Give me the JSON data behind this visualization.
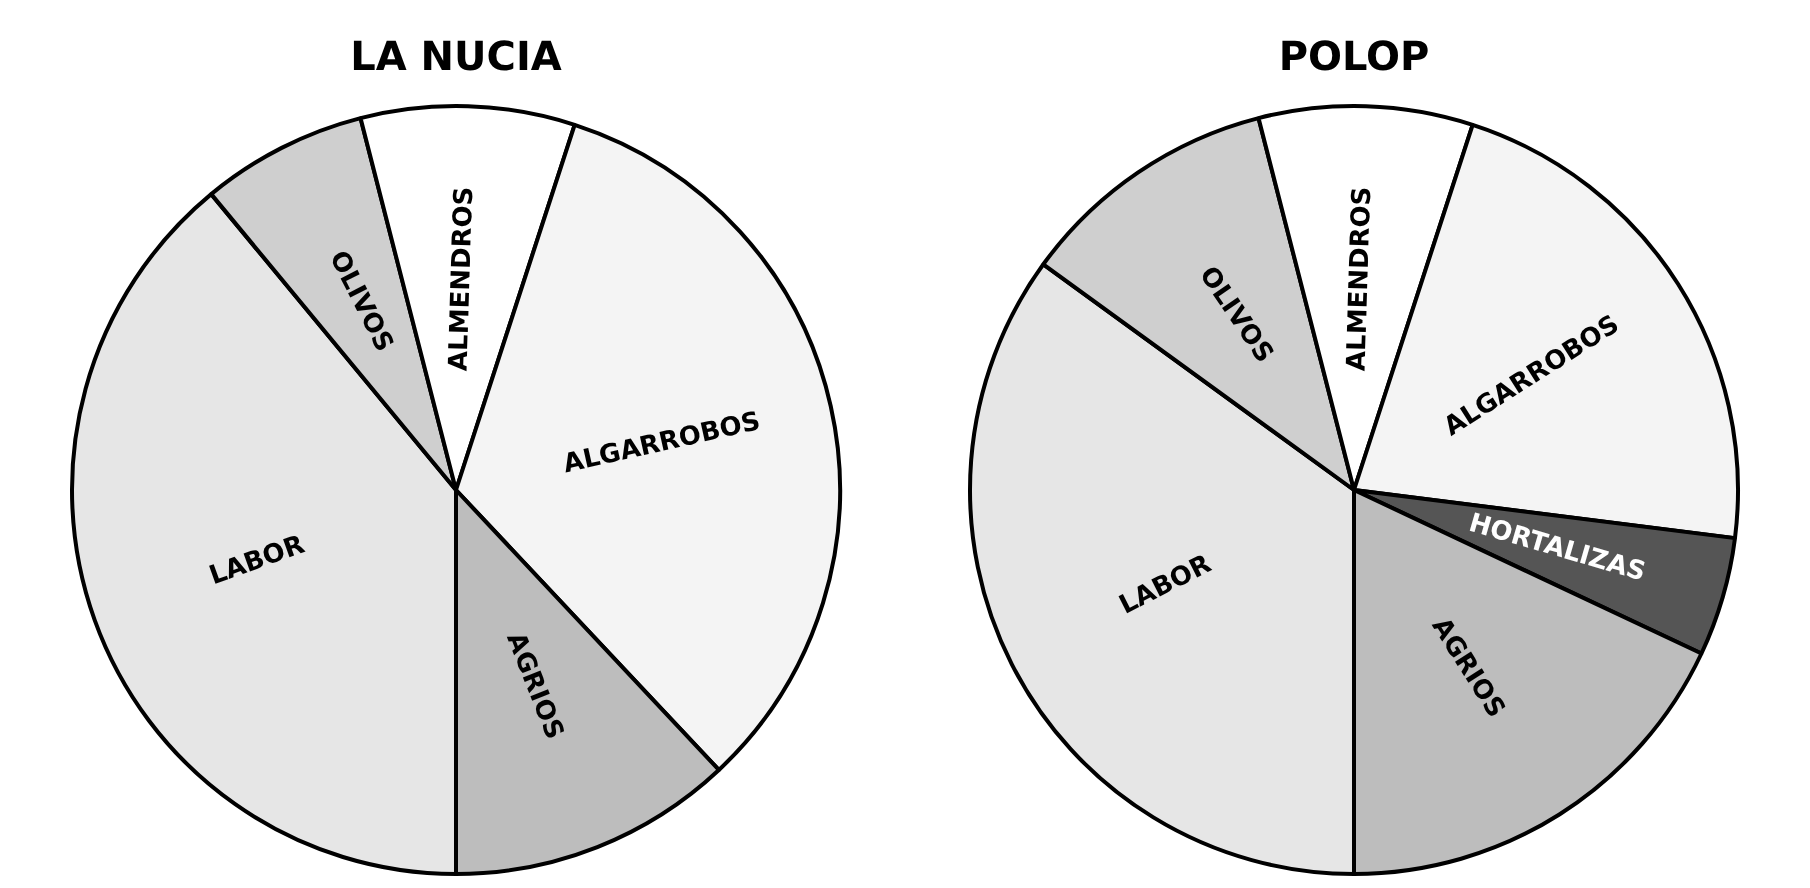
{
  "chart_data": [
    {
      "type": "pie",
      "title": "LA NUCIA",
      "categories": [
        "LABOR",
        "OLIVOS",
        "ALMENDROS",
        "ALGARROBOS",
        "AGRIOS"
      ],
      "values": [
        39,
        7,
        9,
        33,
        12
      ],
      "colors": [
        "#e6e6e6",
        "#cfcfcf",
        "#ffffff",
        "#f4f4f4",
        "#bdbdbd"
      ],
      "legend": false
    },
    {
      "type": "pie",
      "title": "POLOP",
      "categories": [
        "LABOR",
        "OLIVOS",
        "ALMENDROS",
        "ALGARROBOS",
        "HORTALIZAS",
        "AGRIOS"
      ],
      "values": [
        35,
        11,
        9,
        22,
        5,
        18
      ],
      "colors": [
        "#e6e6e6",
        "#cfcfcf",
        "#ffffff",
        "#f4f4f4",
        "#555555",
        "#bdbdbd"
      ],
      "legend": false
    }
  ]
}
